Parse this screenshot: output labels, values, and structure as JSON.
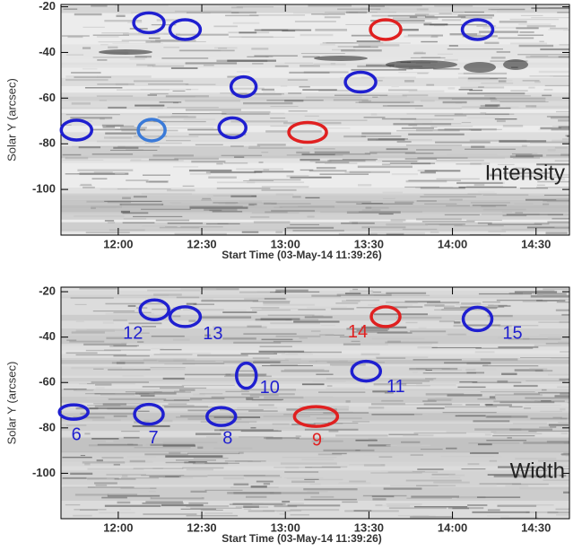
{
  "chart_data": [
    {
      "type": "image",
      "annotation": "Intensity",
      "xlabel": "Start Time (03-May-14 11:39:26)",
      "ylabel": "Solar Y (arcsec)",
      "xlim": [
        "11:39:26",
        "14:42"
      ],
      "xticks": [
        "12:00",
        "12:30",
        "13:00",
        "13:30",
        "14:00",
        "14:30"
      ],
      "ylim": [
        -120,
        -19
      ],
      "yticks": [
        -20,
        -40,
        -60,
        -80,
        -100
      ],
      "markers": [
        {
          "x": "12:11",
          "y": -27,
          "color": "#1f1fd0"
        },
        {
          "x": "12:24",
          "y": -30,
          "color": "#1f1fd0"
        },
        {
          "x": "13:36",
          "y": -30,
          "color": "#e02020"
        },
        {
          "x": "14:09",
          "y": -30,
          "color": "#1f1fd0"
        },
        {
          "x": "12:45",
          "y": -55,
          "color": "#1f1fd0"
        },
        {
          "x": "13:27",
          "y": -53,
          "color": "#1f1fd0"
        },
        {
          "x": "11:45",
          "y": -74,
          "color": "#1f1fd0"
        },
        {
          "x": "12:12",
          "y": -74,
          "color": "#3a7ad8"
        },
        {
          "x": "12:41",
          "y": -73,
          "color": "#1f1fd0"
        },
        {
          "x": "13:08",
          "y": -75,
          "color": "#e02020"
        }
      ]
    },
    {
      "type": "image",
      "annotation": "Width",
      "xlabel": "Start Time (03-May-14 11:39:26)",
      "ylabel": "Solar Y (arcsec)",
      "xlim": [
        "11:39:26",
        "14:42"
      ],
      "xticks": [
        "12:00",
        "12:30",
        "13:00",
        "13:30",
        "14:00",
        "14:30"
      ],
      "ylim": [
        -120,
        -18
      ],
      "yticks": [
        -20,
        -40,
        -60,
        -80,
        -100
      ],
      "markers": [
        {
          "x": "12:13",
          "y": -28,
          "color": "#1f1fd0",
          "label": "12"
        },
        {
          "x": "12:24",
          "y": -31,
          "color": "#1f1fd0",
          "label": "13"
        },
        {
          "x": "13:36",
          "y": -31,
          "color": "#e02020",
          "label": "14"
        },
        {
          "x": "14:09",
          "y": -32,
          "color": "#1f1fd0",
          "label": "15"
        },
        {
          "x": "12:46",
          "y": -57,
          "color": "#1f1fd0",
          "label": "10"
        },
        {
          "x": "13:29",
          "y": -55,
          "color": "#1f1fd0",
          "label": "11"
        },
        {
          "x": "11:44",
          "y": -73,
          "color": "#1f1fd0",
          "label": "6"
        },
        {
          "x": "12:11",
          "y": -74,
          "color": "#1f1fd0",
          "label": "7"
        },
        {
          "x": "12:37",
          "y": -75,
          "color": "#1f1fd0",
          "label": "8"
        },
        {
          "x": "13:11",
          "y": -75,
          "color": "#e02020",
          "label": "9"
        }
      ]
    }
  ]
}
